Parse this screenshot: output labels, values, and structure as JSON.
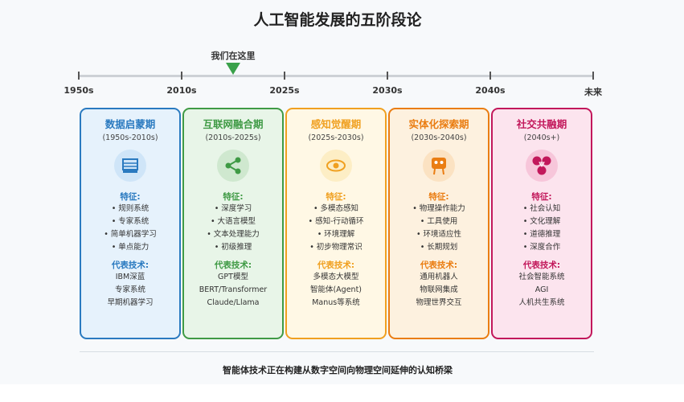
{
  "title": "人工智能发展的五阶段论",
  "marker": {
    "label": "我们在这里",
    "color": "#3aa14a"
  },
  "timeline": [
    "1950s",
    "2010s",
    "2025s",
    "2030s",
    "2040s",
    "未来"
  ],
  "features_label": "特征:",
  "tech_label": "代表技术:",
  "stages": [
    {
      "name": "数据启蒙期",
      "period": "(1950s-2010s)",
      "icon": "server-icon",
      "color": "#2a7ac0",
      "bg": "#e6f2fc",
      "iconbg": "#cfe5f8",
      "features": [
        "• 规则系统",
        "• 专家系统",
        "• 简单机器学习",
        "• 单点能力"
      ],
      "tech": [
        "IBM深蓝",
        "专家系统",
        "早期机器学习"
      ]
    },
    {
      "name": "互联网融合期",
      "period": "(2010s-2025s)",
      "icon": "share-icon",
      "color": "#3f9a45",
      "bg": "#e8f5e8",
      "iconbg": "#cfe8cf",
      "features": [
        "• 深度学习",
        "• 大语言模型",
        "• 文本处理能力",
        "• 初级推理"
      ],
      "tech": [
        "GPT模型",
        "BERT/Transformer",
        "Claude/Llama"
      ]
    },
    {
      "name": "感知觉醒期",
      "period": "(2025s-2030s)",
      "icon": "eye-icon",
      "color": "#f0a020",
      "bg": "#fff8e5",
      "iconbg": "#fdeec5",
      "features": [
        "• 多模态感知",
        "• 感知-行动循环",
        "• 环境理解",
        "• 初步物理常识"
      ],
      "tech": [
        "多模态大模型",
        "智能体(Agent)",
        "Manus等系统"
      ]
    },
    {
      "name": "实体化探索期",
      "period": "(2030s-2040s)",
      "icon": "robot-icon",
      "color": "#ea7d12",
      "bg": "#fdf1df",
      "iconbg": "#fbe2c2",
      "features": [
        "• 物理操作能力",
        "• 工具使用",
        "• 环境适应性",
        "• 长期规划"
      ],
      "tech": [
        "通用机器人",
        "物联网集成",
        "物理世界交互"
      ]
    },
    {
      "name": "社交共融期",
      "period": "(2040s+)",
      "icon": "network-icon",
      "color": "#c2185b",
      "bg": "#fce4ee",
      "iconbg": "#f7c6da",
      "features": [
        "• 社会认知",
        "• 文化理解",
        "• 道德推理",
        "• 深度合作"
      ],
      "tech": [
        "社会智能系统",
        "AGI",
        "人机共生系统"
      ]
    }
  ],
  "footer": "智能体技术正在构建从数字空间向物理空间延伸的认知桥梁"
}
